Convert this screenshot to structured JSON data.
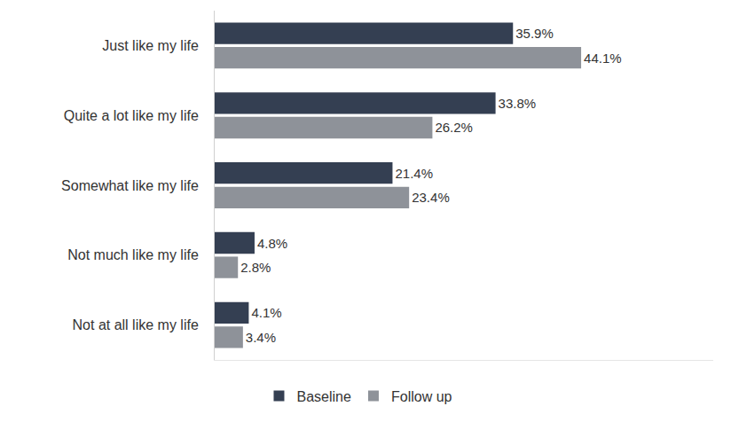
{
  "chart_data": {
    "type": "bar",
    "orientation": "horizontal",
    "categories": [
      "Just like my life",
      "Quite a lot like my life",
      "Somewhat like my life",
      "Not much like my life",
      "Not at all like my life"
    ],
    "series": [
      {
        "name": "Baseline",
        "color": "#343f52",
        "values": [
          35.9,
          33.8,
          21.4,
          4.8,
          4.1
        ],
        "value_labels": [
          "35.9%",
          "33.8%",
          "21.4%",
          "4.8%",
          "4.1%"
        ]
      },
      {
        "name": "Follow up",
        "color": "#8e9299",
        "values": [
          44.1,
          26.2,
          23.4,
          2.8,
          3.4
        ],
        "value_labels": [
          "44.1%",
          "26.2%",
          "23.4%",
          "2.8%",
          "3.4%"
        ]
      }
    ],
    "xlim": [
      0,
      60
    ],
    "data_labels": true,
    "tick_labels": "y",
    "grid": false,
    "legend": "bottom"
  }
}
